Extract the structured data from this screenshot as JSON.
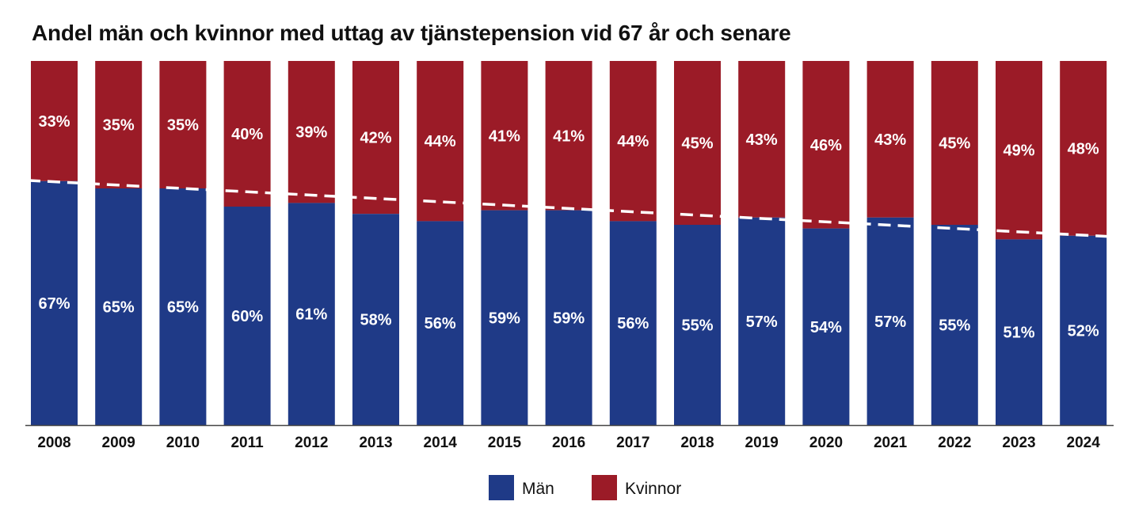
{
  "chart_data": {
    "type": "bar",
    "stacked": true,
    "title": "Andel män och kvinnor med uttag av tjänstepension vid 67 år och senare",
    "xlabel": "",
    "ylabel": "",
    "ylim": [
      0,
      100
    ],
    "categories": [
      "2008",
      "2009",
      "2010",
      "2011",
      "2012",
      "2013",
      "2014",
      "2015",
      "2016",
      "2017",
      "2018",
      "2019",
      "2020",
      "2021",
      "2022",
      "2023",
      "2024"
    ],
    "series": [
      {
        "name": "Män",
        "color": "#1f3a87",
        "values": [
          67,
          65,
          65,
          60,
          61,
          58,
          56,
          59,
          59,
          56,
          55,
          57,
          54,
          57,
          55,
          51,
          52
        ],
        "labels": [
          "67%",
          "65%",
          "65%",
          "60%",
          "61%",
          "58%",
          "56%",
          "59%",
          "59%",
          "56%",
          "55%",
          "57%",
          "54%",
          "57%",
          "55%",
          "51%",
          "52%"
        ]
      },
      {
        "name": "Kvinnor",
        "color": "#9b1b27",
        "values": [
          33,
          35,
          35,
          40,
          39,
          42,
          44,
          41,
          41,
          44,
          45,
          43,
          46,
          43,
          45,
          49,
          48
        ],
        "labels": [
          "33%",
          "35%",
          "35%",
          "40%",
          "39%",
          "42%",
          "44%",
          "41%",
          "41%",
          "44%",
          "45%",
          "43%",
          "46%",
          "43%",
          "45%",
          "49%",
          "48%"
        ]
      }
    ],
    "trendline": {
      "series": "Män",
      "style": "dashed",
      "color": "#ffffff",
      "start": 67.2,
      "end": 51.8
    },
    "legend": {
      "position": "bottom-center",
      "entries": [
        "Män",
        "Kvinnor"
      ]
    },
    "grid": false
  }
}
